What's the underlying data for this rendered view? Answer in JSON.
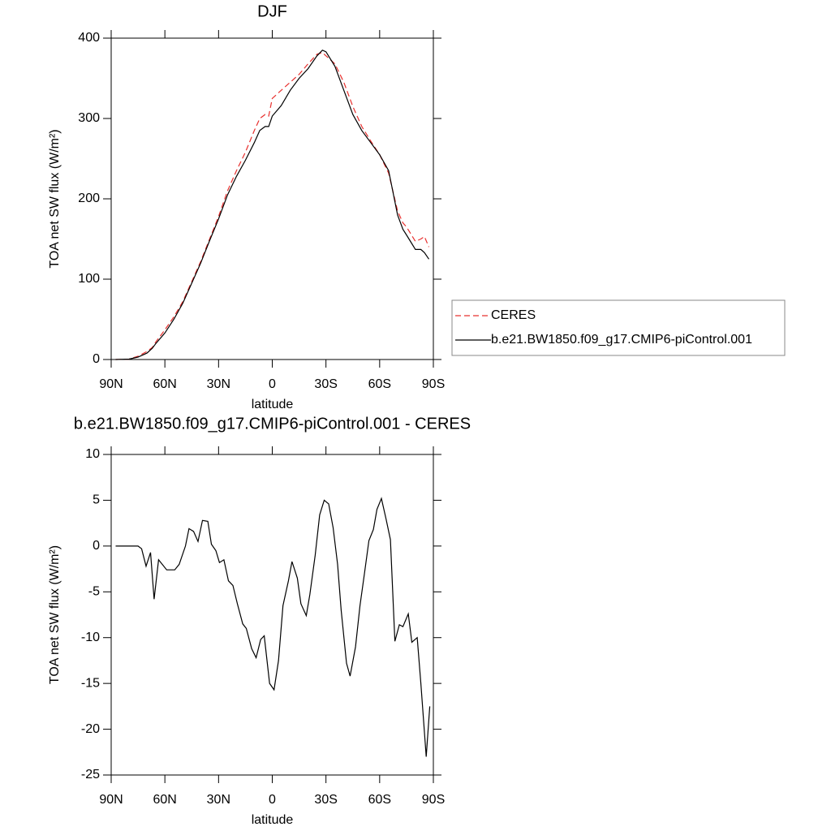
{
  "chart_data": [
    {
      "type": "line",
      "title": "DJF",
      "x_label": "latitude",
      "y_label": "TOA net SW flux (W/m²)",
      "x": [
        87.5,
        80,
        75,
        70,
        67,
        65,
        60,
        55,
        50,
        45,
        40,
        35,
        30,
        25,
        20,
        15,
        10,
        7,
        4,
        2,
        0,
        -5,
        -10,
        -15,
        -20,
        -25,
        -28,
        -30,
        -35,
        -40,
        -45,
        -50,
        -55,
        -60,
        -65,
        -70,
        -73,
        -75,
        -80,
        -83,
        -85,
        -87.5
      ],
      "series": [
        {
          "name": "CERES",
          "color": "#e8302e",
          "dash": true,
          "values": [
            0,
            0.5,
            4,
            10,
            15,
            22,
            37,
            53,
            72,
            97,
            122,
            150,
            178,
            210,
            235,
            258,
            285,
            300,
            305,
            303,
            325,
            335,
            345,
            355,
            368,
            380,
            382,
            378,
            368,
            345,
            315,
            290,
            272,
            255,
            232,
            185,
            170,
            165,
            147,
            150,
            153,
            140
          ]
        },
        {
          "name": "b.e21.BW1850.f09_g17.CMIP6-piControl.001",
          "color": "#000000",
          "dash": false,
          "values": [
            0,
            0.5,
            3,
            8,
            14,
            20,
            33,
            50,
            70,
            95,
            120,
            148,
            175,
            205,
            228,
            248,
            270,
            285,
            290,
            290,
            303,
            316,
            335,
            350,
            362,
            378,
            385,
            383,
            365,
            335,
            305,
            285,
            270,
            255,
            235,
            180,
            162,
            155,
            137,
            137,
            133,
            125
          ]
        }
      ],
      "xlim": [
        90,
        -90
      ],
      "xticks": [
        {
          "value": 90,
          "label": "90N"
        },
        {
          "value": 60,
          "label": "60N"
        },
        {
          "value": 30,
          "label": "30N"
        },
        0,
        {
          "value": -30,
          "label": "30S"
        },
        {
          "value": -60,
          "label": "60S"
        },
        {
          "value": -90,
          "label": "90S"
        }
      ],
      "ylim": [
        0,
        400
      ],
      "yticks": [
        0,
        100,
        200,
        300,
        400
      ],
      "legend": "right"
    },
    {
      "type": "line",
      "title": "b.e21.BW1850.f09_g17.CMIP6-piControl.001 - CERES",
      "x_label": "latitude",
      "y_label": "TOA net SW flux (W/m²)",
      "x": [
        87.5,
        80,
        75,
        73,
        70.5,
        68,
        66,
        63.5,
        59,
        54.5,
        52,
        48.5,
        46.5,
        44,
        41.5,
        39,
        36,
        34,
        31.5,
        29.5,
        27,
        24.5,
        22,
        19.5,
        16.5,
        14.5,
        11.5,
        9,
        6.5,
        4.5,
        1.5,
        -1,
        -3.5,
        -6,
        -9,
        -11,
        -14,
        -16,
        -19,
        -21,
        -24,
        -26.5,
        -29,
        -31.5,
        -34,
        -36.5,
        -38.5,
        -41.5,
        -43.5,
        -46.5,
        -49,
        -51.5,
        -54,
        -56.5,
        -58.5,
        -61,
        -63.5,
        -66,
        -68.5,
        -71,
        -73,
        -76,
        -78,
        -81,
        -83,
        -86,
        -88
      ],
      "values": [
        0,
        0,
        0,
        -0.3,
        -2.2,
        -0.7,
        -5.8,
        -1.5,
        -2.6,
        -2.6,
        -2,
        0,
        1.9,
        1.6,
        0.5,
        2.8,
        2.7,
        0.2,
        -0.5,
        -1.8,
        -1.5,
        -3.8,
        -4.3,
        -6.3,
        -8.5,
        -9,
        -11.2,
        -12.2,
        -10.2,
        -9.8,
        -15,
        -15.7,
        -12.5,
        -6.5,
        -3.8,
        -1.7,
        -3.5,
        -6.3,
        -7.6,
        -5.3,
        -1,
        3.4,
        5,
        4.6,
        2,
        -2,
        -7,
        -12.8,
        -14.2,
        -11,
        -6.5,
        -3,
        0.6,
        1.8,
        4,
        5.2,
        3,
        0.7,
        -10.4,
        -8.6,
        -8.8,
        -7.4,
        -10.5,
        -10,
        -15,
        -23,
        -17.5
      ],
      "color": "#000000",
      "xlim": [
        90,
        -90
      ],
      "xticks": [
        {
          "value": 90,
          "label": "90N"
        },
        {
          "value": 60,
          "label": "60N"
        },
        {
          "value": 30,
          "label": "30N"
        },
        0,
        {
          "value": -30,
          "label": "30S"
        },
        {
          "value": -60,
          "label": "60S"
        },
        {
          "value": -90,
          "label": "90S"
        }
      ],
      "ylim": [
        -25,
        10
      ],
      "yticks": [
        10,
        5,
        0,
        -5,
        -10,
        -15,
        -20,
        -25
      ]
    }
  ]
}
